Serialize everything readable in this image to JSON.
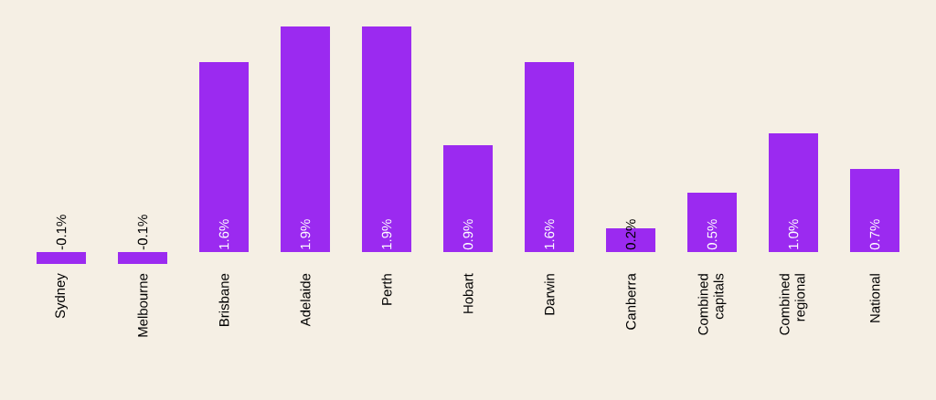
{
  "chart_data": {
    "type": "bar",
    "categories": [
      "Sydney",
      "Melbourne",
      "Brisbane",
      "Adelaide",
      "Perth",
      "Hobart",
      "Darwin",
      "Canberra",
      "Combined capitals",
      "Combined regional",
      "National"
    ],
    "values": [
      -0.1,
      -0.1,
      1.6,
      1.9,
      1.9,
      0.9,
      1.6,
      0.2,
      0.5,
      1.0,
      0.7
    ],
    "value_labels": [
      "-0.1%",
      "-0.1%",
      "1.6%",
      "1.9%",
      "1.9%",
      "0.9%",
      "1.6%",
      "0.2%",
      "0.5%",
      "1.0%",
      "0.7%"
    ],
    "color": "#9b2af0"
  }
}
